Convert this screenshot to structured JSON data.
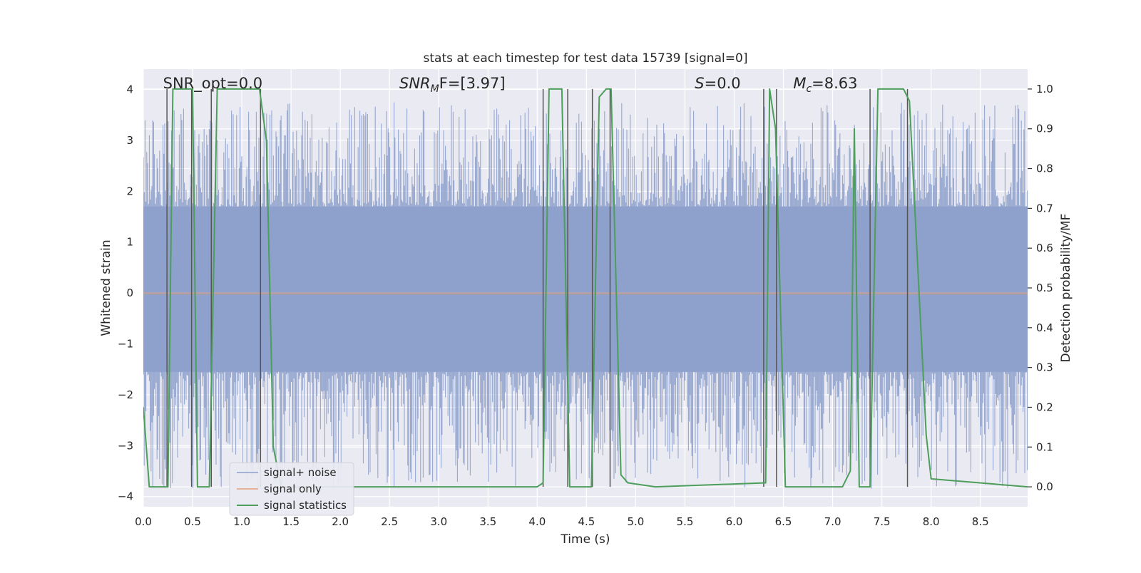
{
  "chart_data": {
    "type": "line",
    "title": "stats at each timestep for test data 15739 [signal=0]",
    "xlabel": "Time (s)",
    "ylabel": "Whitened strain",
    "y2label": "Detection probability/MF",
    "xlim": [
      0.0,
      8.98
    ],
    "ylim": [
      -4.2,
      4.4
    ],
    "y2lim": [
      -0.05,
      1.05
    ],
    "xticks": [
      "0.0",
      "0.5",
      "1.0",
      "1.5",
      "2.0",
      "2.5",
      "3.0",
      "3.5",
      "4.0",
      "4.5",
      "5.0",
      "5.5",
      "6.0",
      "6.5",
      "7.0",
      "7.5",
      "8.0",
      "8.5"
    ],
    "yticks": [
      "4",
      "3",
      "2",
      "1",
      "0",
      "−1",
      "−2",
      "−3",
      "−4"
    ],
    "y2ticks": [
      "1.0",
      "0.9",
      "0.8",
      "0.7",
      "0.6",
      "0.5",
      "0.4",
      "0.3",
      "0.2",
      "0.1",
      "0.0"
    ],
    "annotations": [
      {
        "text": "SNR_opt=0.0",
        "x": 0.2
      },
      {
        "text": "SNR",
        "sub": "M",
        "after": "F=[3.97]",
        "x": 2.6
      },
      {
        "text": "S",
        "after": "=0.0",
        "x": 5.6
      },
      {
        "text": "M",
        "sub": "c",
        "after": "=8.63",
        "x": 6.6
      }
    ],
    "legend": {
      "location": "lower-left",
      "entries": [
        {
          "label": "signal+ noise",
          "color": "#8ea0cc"
        },
        {
          "label": "signal only",
          "color": "#e8a07c"
        },
        {
          "label": "signal statistics",
          "color": "#4c9e5a"
        }
      ]
    },
    "series": [
      {
        "name": "signal statistics",
        "axis": "right",
        "color": "#4c9e5a",
        "x": [
          0.0,
          0.06,
          0.25,
          0.3,
          0.5,
          0.55,
          0.67,
          0.75,
          1.18,
          1.25,
          1.32,
          1.4,
          2.5,
          4.0,
          4.06,
          4.12,
          4.25,
          4.33,
          4.45,
          4.55,
          4.63,
          4.7,
          4.75,
          4.85,
          4.92,
          5.2,
          6.32,
          6.36,
          6.42,
          6.52,
          6.7,
          7.1,
          7.18,
          7.22,
          7.27,
          7.38,
          7.46,
          7.72,
          7.78,
          7.95,
          8.0,
          8.98
        ],
        "values": [
          0.2,
          0.0,
          0.0,
          1.0,
          1.0,
          0.0,
          0.0,
          1.0,
          1.0,
          0.87,
          0.1,
          0.0,
          0.0,
          0.0,
          0.01,
          1.0,
          1.0,
          0.0,
          0.0,
          0.0,
          0.98,
          1.0,
          1.0,
          0.03,
          0.01,
          0.0,
          0.01,
          1.0,
          0.9,
          0.0,
          0.0,
          0.0,
          0.04,
          0.9,
          0.0,
          0.0,
          1.0,
          1.0,
          0.97,
          0.13,
          0.02,
          0.0
        ]
      },
      {
        "name": "signal only",
        "axis": "left",
        "color": "#e8a07c",
        "x": [
          0.0,
          8.98
        ],
        "values": [
          0.0,
          0.0
        ]
      }
    ],
    "markers": {
      "name": "trigger markers",
      "color": "#555555",
      "x": [
        0.24,
        0.49,
        0.69,
        1.19,
        4.06,
        4.31,
        4.56,
        4.74,
        6.3,
        6.43,
        7.38,
        7.76
      ]
    },
    "noise_band": {
      "name": "signal+ noise",
      "color": "#8ea0cc",
      "core_range": [
        -1.55,
        1.7
      ],
      "peak_range": [
        -3.85,
        3.75
      ]
    }
  }
}
